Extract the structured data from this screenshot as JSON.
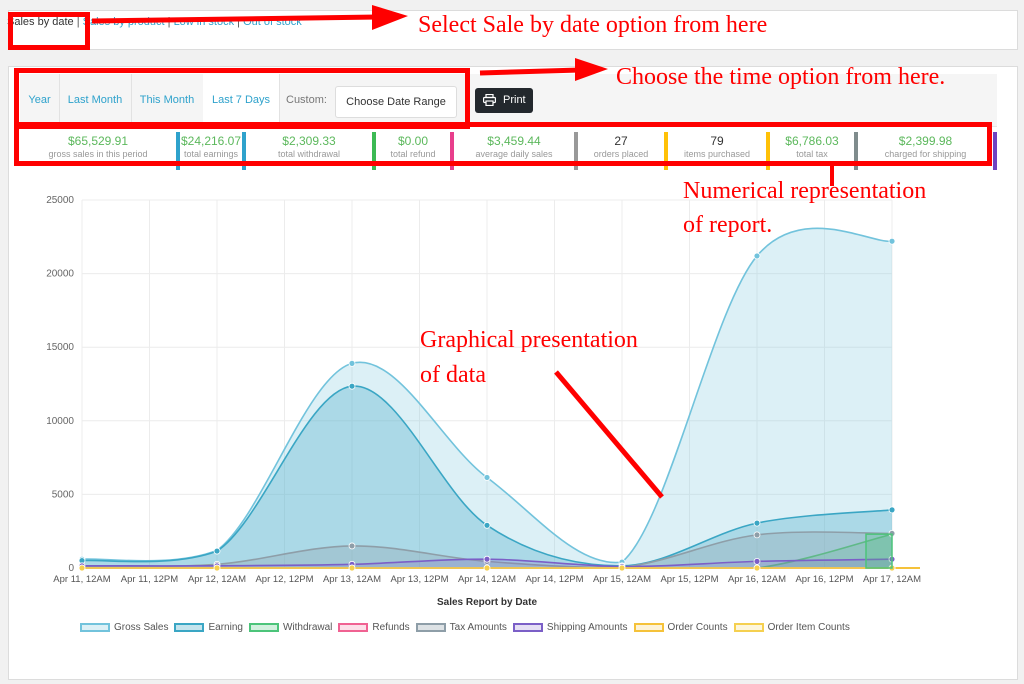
{
  "subnav": {
    "items": [
      {
        "label": "Sales by date",
        "current": true
      },
      {
        "label": "Sales by product"
      },
      {
        "label": "Low in stock"
      },
      {
        "label": "Out of stock"
      }
    ],
    "separator": "|"
  },
  "range": {
    "tabs": [
      {
        "label": "Year"
      },
      {
        "label": "Last Month"
      },
      {
        "label": "This Month"
      },
      {
        "label": "Last 7 Days",
        "active": true
      }
    ],
    "custom_label": "Custom:",
    "date_placeholder": "Choose Date Range"
  },
  "print_label": "Print",
  "stats": [
    {
      "value": "$65,529.91",
      "label": "gross sales in this period",
      "color": "#2ea2cc"
    },
    {
      "value": "$24,216.07",
      "label": "total earnings",
      "color": "#2ea2cc"
    },
    {
      "value": "$2,309.33",
      "label": "total withdrawal",
      "color": "#3cba54"
    },
    {
      "value": "$0.00",
      "label": "total refund",
      "color": "#e83e8c"
    },
    {
      "value": "$3,459.44",
      "label": "average daily sales",
      "color": "#999999"
    },
    {
      "value": "27",
      "label": "orders placed",
      "color": "#ffc107"
    },
    {
      "value": "79",
      "label": "items purchased",
      "color": "#ffc107"
    },
    {
      "value": "$6,786.03",
      "label": "total tax",
      "color": "#7f8c8d"
    },
    {
      "value": "$2,399.98",
      "label": "charged for shipping",
      "color": "#6f42c1"
    }
  ],
  "annotations": {
    "a1": "Select Sale by date option from here",
    "a2": "Choose the time option from here.",
    "a3_line1": "Numerical representation",
    "a3_line2": "of report.",
    "a4_line1": "Graphical presentation",
    "a4_line2": "of data"
  },
  "chart_data": {
    "type": "area",
    "xlabel": "Sales Report by Date",
    "ylabel": "",
    "ylim": [
      0,
      25000
    ],
    "yticks": [
      0,
      5000,
      10000,
      15000,
      20000,
      25000
    ],
    "x_ticks": [
      "Apr 11, 12AM",
      "Apr 11, 12PM",
      "Apr 12, 12AM",
      "Apr 12, 12PM",
      "Apr 13, 12AM",
      "Apr 13, 12PM",
      "Apr 14, 12AM",
      "Apr 14, 12PM",
      "Apr 15, 12AM",
      "Apr 15, 12PM",
      "Apr 16, 12AM",
      "Apr 16, 12PM",
      "Apr 17, 12AM"
    ],
    "x_points": [
      "Apr 11, 12AM",
      "Apr 12, 12AM",
      "Apr 13, 12AM",
      "Apr 14, 12AM",
      "Apr 15, 12AM",
      "Apr 16, 12AM",
      "Apr 17, 12AM"
    ],
    "series": [
      {
        "name": "Gross Sales",
        "color": "#72c3dc",
        "fill": "rgba(114,195,220,0.25)",
        "values": [
          600,
          1200,
          13900,
          6150,
          400,
          21200,
          22200
        ]
      },
      {
        "name": "Earning",
        "color": "#3aa6c4",
        "fill": "rgba(58,166,196,0.3)",
        "values": [
          500,
          1150,
          12350,
          2900,
          150,
          3050,
          3950
        ]
      },
      {
        "name": "Withdrawal",
        "color": "#4cc47a",
        "fill": "rgba(76,196,122,0.25)",
        "values": [
          0,
          0,
          0,
          0,
          0,
          0,
          2300
        ]
      },
      {
        "name": "Refunds",
        "color": "#f06292",
        "fill": "rgba(240,98,146,0.2)",
        "values": [
          0,
          0,
          0,
          0,
          0,
          0,
          0
        ]
      },
      {
        "name": "Tax Amounts",
        "color": "#8e9ea8",
        "fill": "rgba(142,158,168,0.3)",
        "values": [
          100,
          250,
          1500,
          450,
          50,
          2250,
          2350
        ]
      },
      {
        "name": "Shipping Amounts",
        "color": "#7b5fc7",
        "fill": "rgba(123,95,199,0.2)",
        "values": [
          150,
          150,
          250,
          600,
          100,
          450,
          600
        ]
      },
      {
        "name": "Order Counts",
        "color": "#f5c23a",
        "fill": "rgba(245,194,58,0.2)",
        "values": [
          2,
          3,
          8,
          4,
          1,
          4,
          5
        ]
      },
      {
        "name": "Order Item Counts",
        "color": "#f5d050",
        "fill": "rgba(245,208,80,0.2)",
        "values": [
          5,
          8,
          20,
          12,
          3,
          14,
          17
        ]
      }
    ],
    "grid": true,
    "legend": "bottom"
  }
}
